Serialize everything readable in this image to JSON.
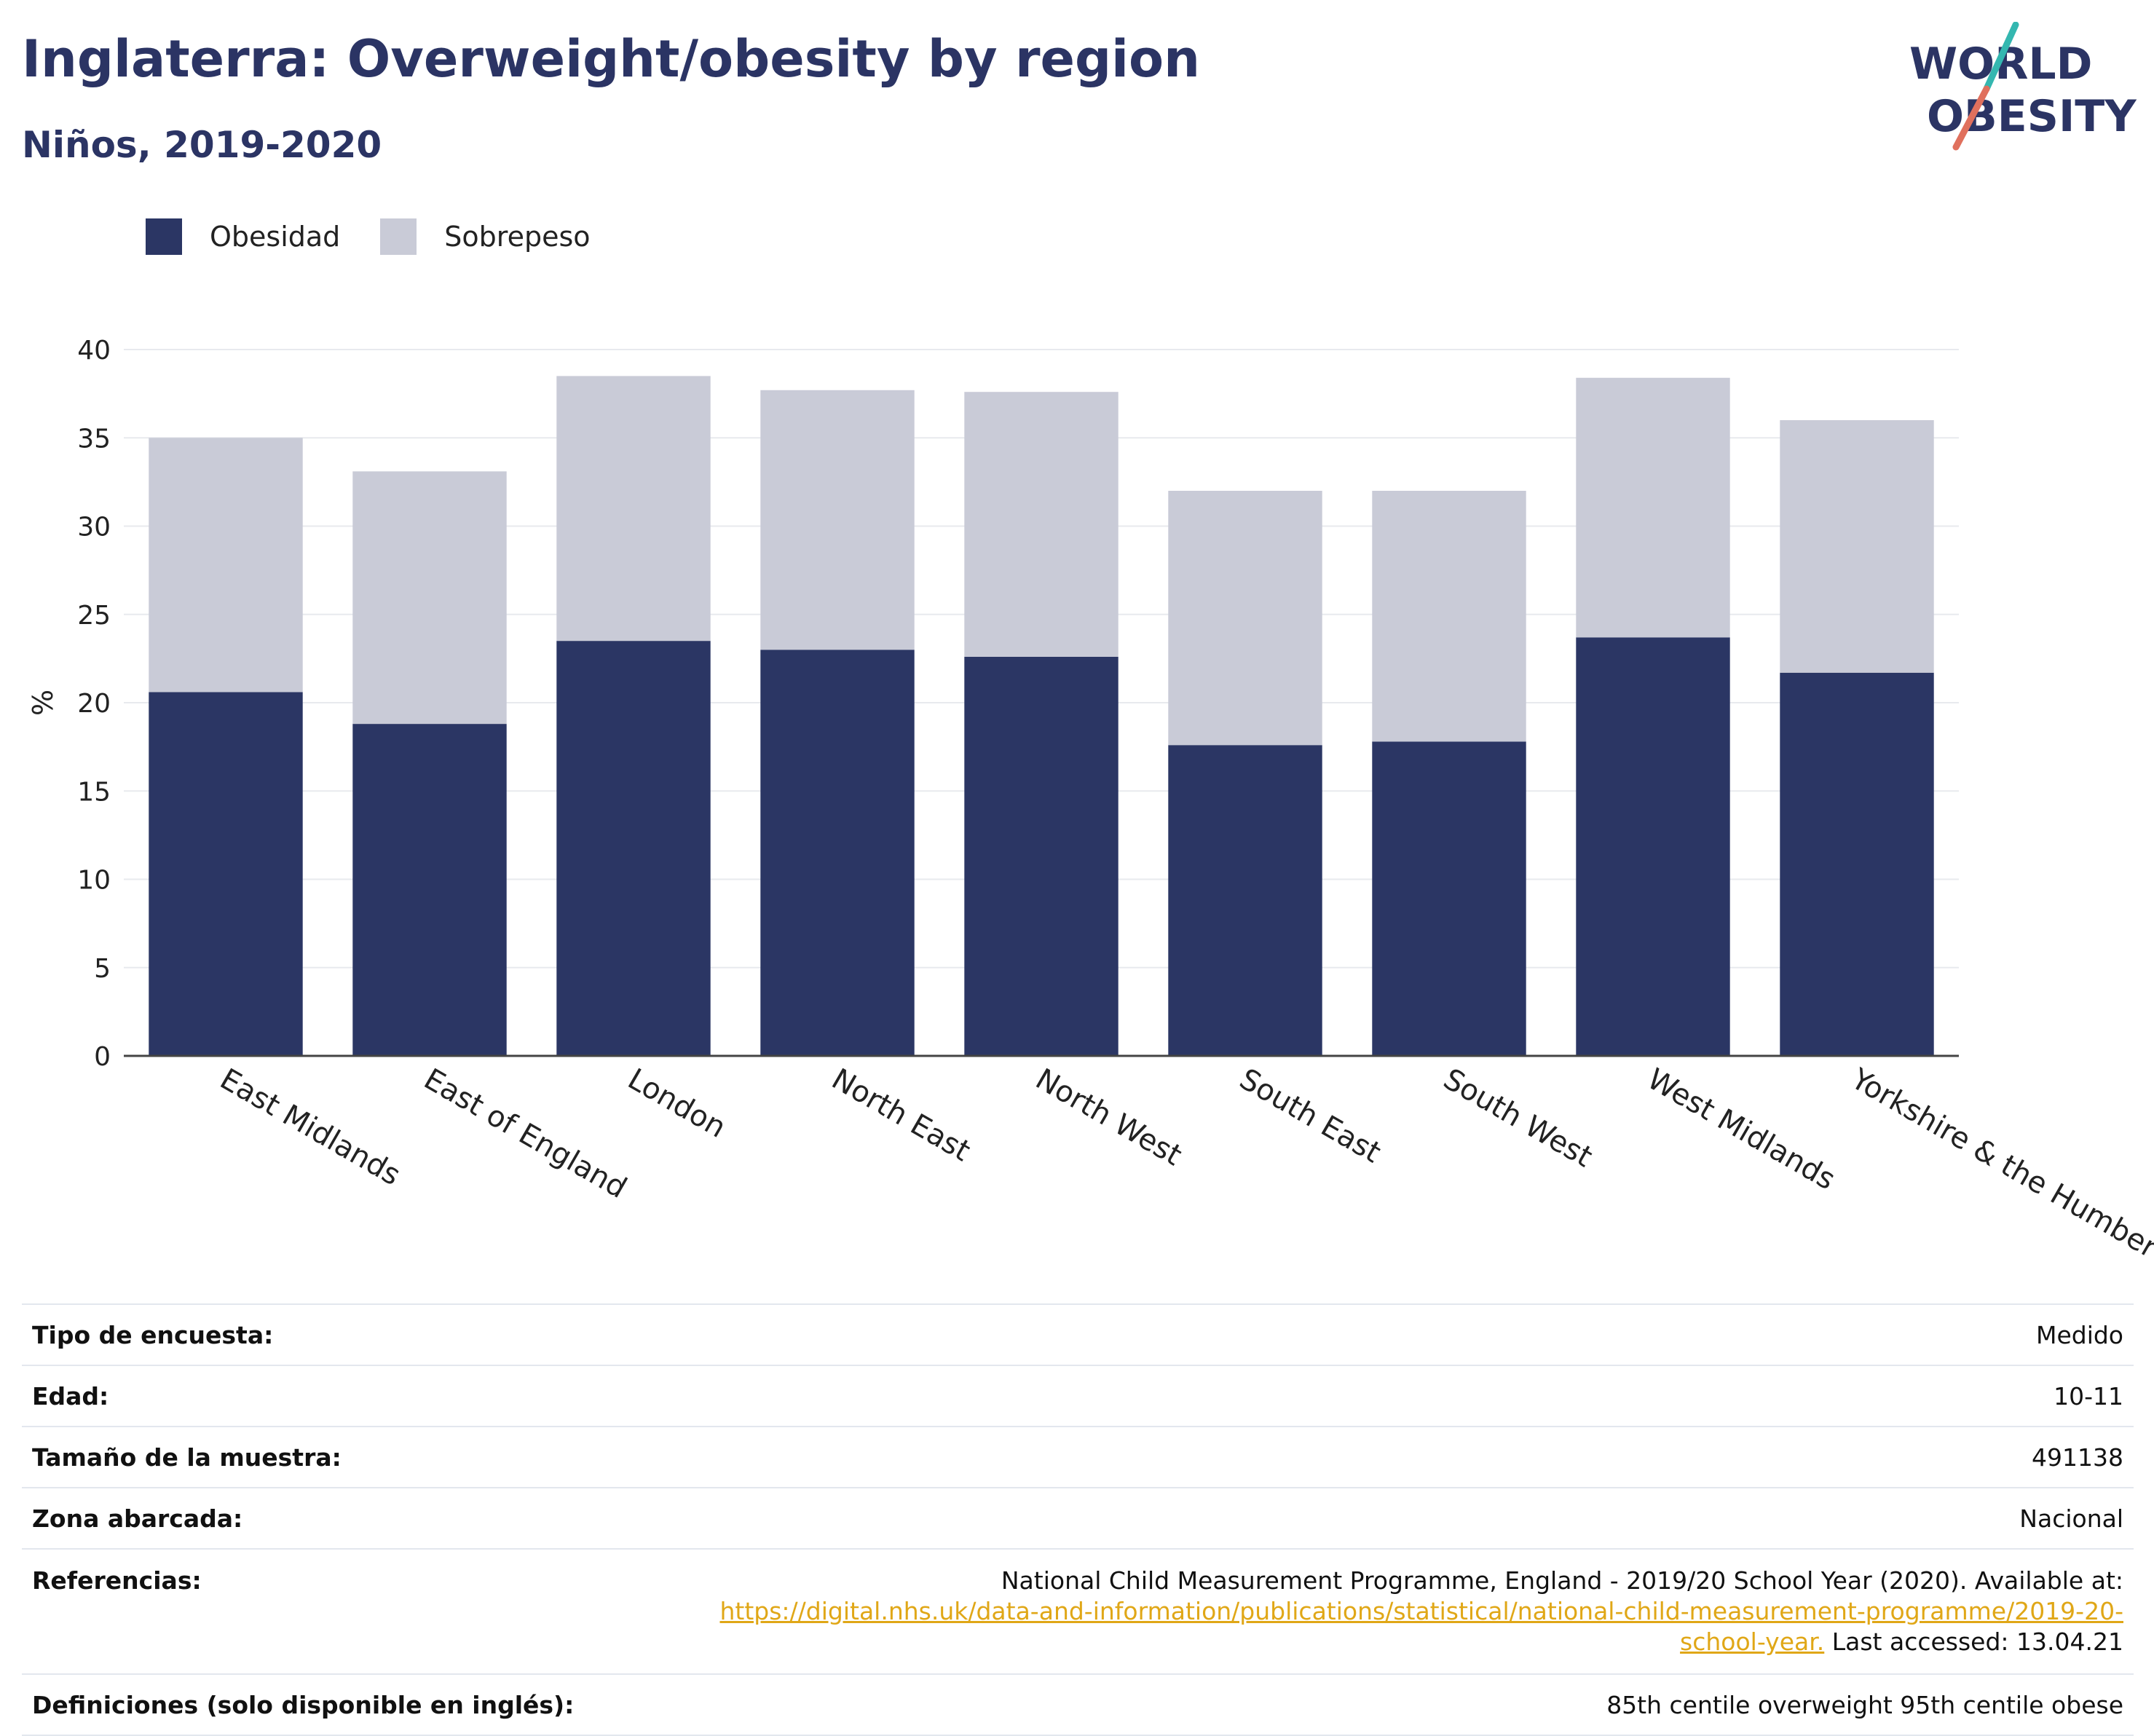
{
  "header": {
    "title": "Inglaterra: Overweight/obesity by region",
    "subtitle": "Niños, 2019-2020"
  },
  "logo": {
    "line1": "WORLD",
    "line2": "OBESITY",
    "text_color": "#2b3464",
    "accent_colors": [
      "#34b7b0",
      "#e0705d"
    ]
  },
  "legend": [
    {
      "label": "Obesidad",
      "color": "#2b3664"
    },
    {
      "label": "Sobrepeso",
      "color": "#c9cbd7"
    }
  ],
  "chart_data": {
    "type": "bar",
    "stacked": true,
    "categories": [
      "East Midlands",
      "East of England",
      "London",
      "North East",
      "North West",
      "South East",
      "South West",
      "West Midlands",
      "Yorkshire & the Humber"
    ],
    "series": [
      {
        "name": "Obesidad",
        "color": "#2b3664",
        "values": [
          20.6,
          18.8,
          23.5,
          23.0,
          22.6,
          17.6,
          17.8,
          23.7,
          21.7
        ]
      },
      {
        "name": "Sobrepeso",
        "color": "#c9cbd7",
        "values": [
          14.4,
          14.3,
          15.0,
          14.7,
          15.0,
          14.4,
          14.2,
          14.7,
          14.3
        ]
      }
    ],
    "ylabel": "%",
    "xlabel": "",
    "ylim": [
      0,
      40
    ],
    "yticks": [
      0,
      5,
      10,
      15,
      20,
      25,
      30,
      35,
      40
    ],
    "grid": true,
    "legend_position": "top-left"
  },
  "info": {
    "survey_type": {
      "label": "Tipo de encuesta:",
      "value": "Medido"
    },
    "age": {
      "label": "Edad:",
      "value": "10-11"
    },
    "sample_size": {
      "label": "Tamaño de la muestra:",
      "value": "491138"
    },
    "area": {
      "label": "Zona abarcada:",
      "value": "Nacional"
    },
    "references": {
      "label": "Referencias:",
      "text_before": "National Child Measurement Programme, England - 2019/20 School Year (2020). Available at: ",
      "link": "https://digital.nhs.uk/data-and-information/publications/statistical/national-child-measurement-programme/2019-20-school-year.",
      "text_after": " Last accessed: 13.04.21"
    },
    "definitions": {
      "label": "Definiciones (solo disponible en inglés):",
      "value": "85th centile overweight 95th centile obese"
    }
  }
}
